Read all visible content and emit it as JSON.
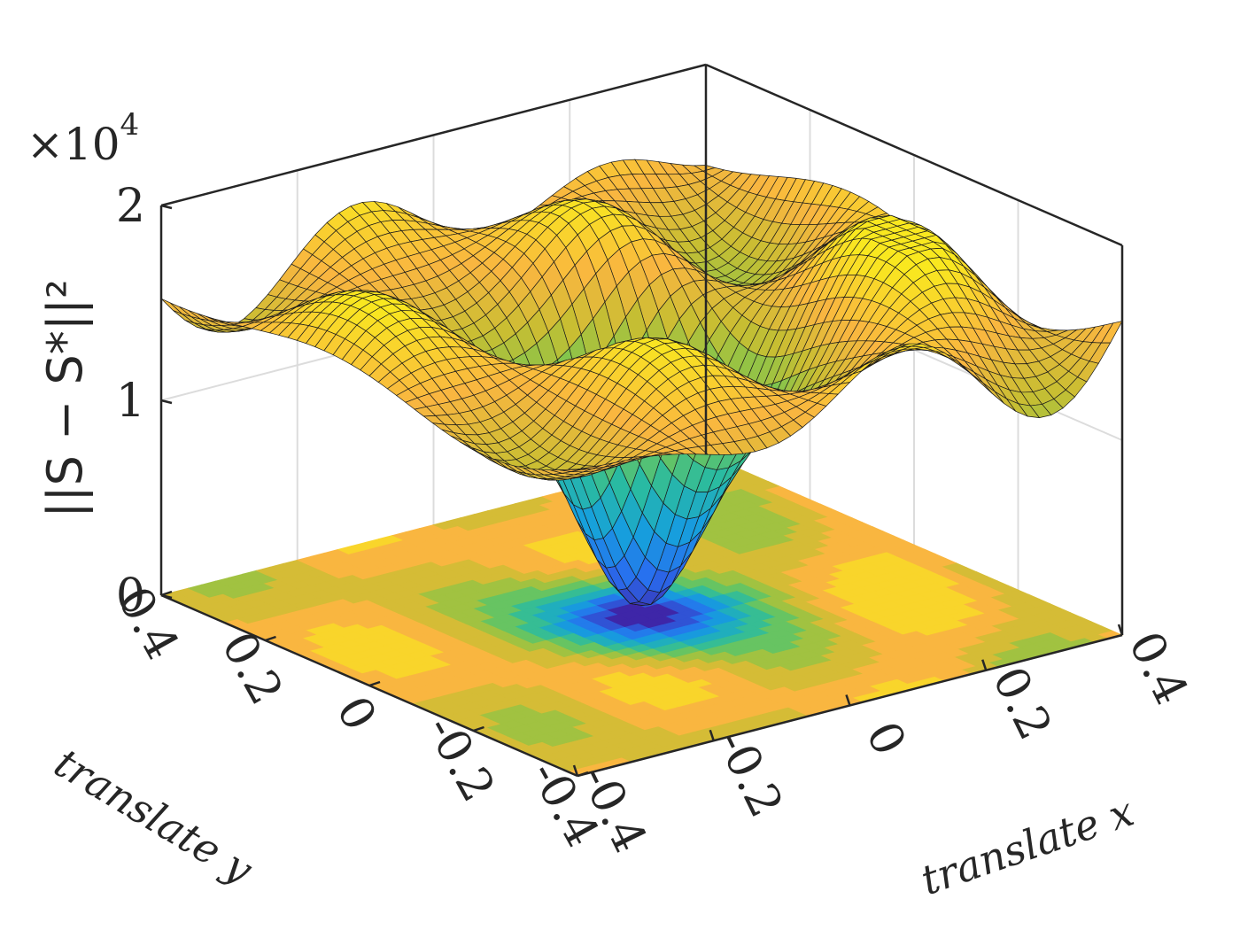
{
  "chart_data": {
    "type": "surface3d",
    "xlabel": "translate x",
    "ylabel": "translate y",
    "zlabel": "||S − S*||²",
    "z_multiplier": "×10",
    "z_multiplier_exp": "4",
    "xlim": [
      -0.4,
      0.4
    ],
    "ylim": [
      -0.4,
      0.4
    ],
    "zlim": [
      0,
      2
    ],
    "x_ticks": [
      "-0.4",
      "-0.2",
      "0",
      "0.2",
      "0.4"
    ],
    "y_ticks": [
      "-0.4",
      "-0.2",
      "0",
      "0.2",
      "0.4"
    ],
    "z_ticks": [
      "0",
      "1",
      "2"
    ],
    "grid": true,
    "contour_projection_at_z": 0,
    "colormap": "parula",
    "colors": {
      "low": "#3e26a8",
      "mid_low": "#1f8fe0",
      "mid": "#2ab9a2",
      "mid_high": "#a7bf2f",
      "high_orange": "#f9b640",
      "high": "#f9e81f",
      "axis": "#262626",
      "grid": "#dcdcdc"
    },
    "surface_summary": {
      "global_min": {
        "x": 0.0,
        "y": 0.0,
        "z": 0.05
      },
      "typical_max_z": 1.75
    }
  }
}
